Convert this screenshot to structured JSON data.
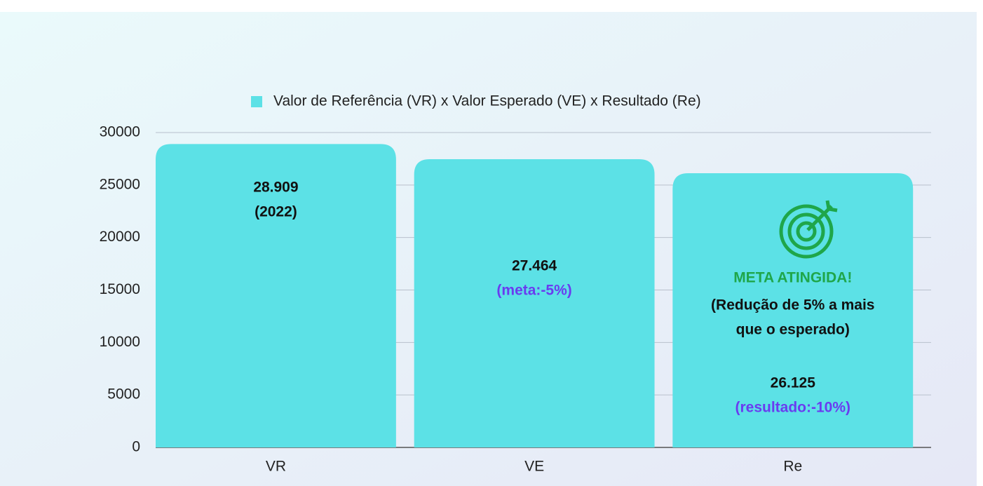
{
  "chart_data": {
    "type": "bar",
    "categories": [
      "VR",
      "VE",
      "Re"
    ],
    "series": [
      {
        "name": "Valor de Referência (VR) x Valor Esperado (VE) x Resultado (Re)",
        "color": "#5ce1e6",
        "values": [
          28909,
          27464,
          26125
        ],
        "value_labels": [
          "28.909",
          "27.464",
          "26.125"
        ]
      }
    ],
    "bar_notes": [
      "(2022)",
      "(meta:-5%)",
      "(resultado:-10%)"
    ],
    "bar_note_colors": [
      "#111111",
      "#6a3cf0",
      "#6a3cf0"
    ],
    "callout": {
      "title": "META ATINGIDA!",
      "title_color": "#1fa64a",
      "lines": [
        "(Redução de 5% a mais",
        "que o esperado)"
      ]
    },
    "ylim": [
      0,
      30000
    ],
    "yticks": [
      0,
      5000,
      10000,
      15000,
      20000,
      25000,
      30000
    ],
    "grid": true,
    "legend": "top"
  }
}
